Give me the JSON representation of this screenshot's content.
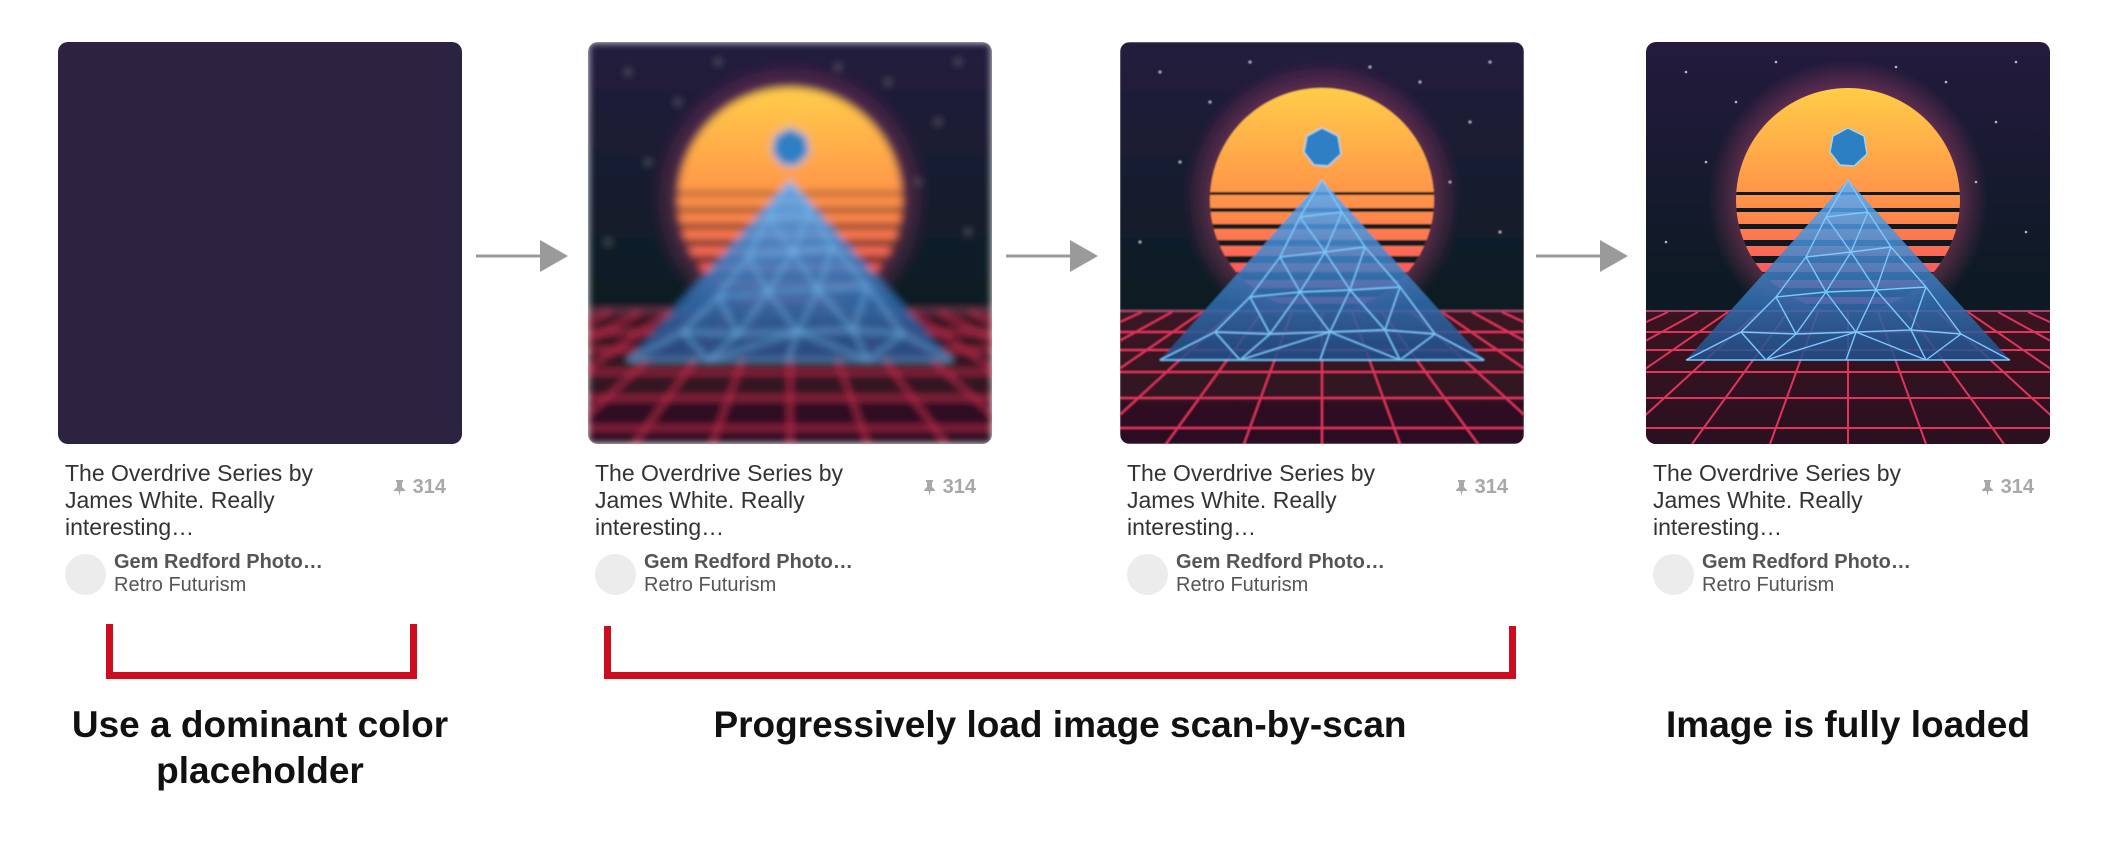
{
  "colors": {
    "placeholder": "#2b2340",
    "bracket": "#cb0d1e",
    "arrow": "#9a9a9a",
    "sky_top": "#241a3e",
    "sky_bottom": "#0d1a24",
    "sun_top": "#ffd048",
    "sun_bottom": "#f4306a",
    "mountain": "#2d6fb0",
    "mountain_lines": "#7cc8ff",
    "grid_lines": "#e0345c",
    "floor": "#2a1020"
  },
  "cards": [
    {
      "state": "placeholder",
      "image_alt": "Dominant color placeholder",
      "description": "The Overdrive Series by James White. Really interesting…",
      "saves": "314",
      "pinner": "Gem Redford Photo…",
      "board": "Retro Futurism"
    },
    {
      "state": "blurred",
      "image_alt": "Progressively loading image (low detail)",
      "description": "The Overdrive Series by James White. Really interesting…",
      "saves": "314",
      "pinner": "Gem Redford Photo…",
      "board": "Retro Futurism"
    },
    {
      "state": "partial",
      "image_alt": "Progressively loading image (more detail)",
      "description": "The Overdrive Series by James White. Really interesting…",
      "saves": "314",
      "pinner": "Gem Redford Photo…",
      "board": "Retro Futurism"
    },
    {
      "state": "full",
      "image_alt": "Fully loaded image",
      "description": "The Overdrive Series by James White. Really interesting…",
      "saves": "314",
      "pinner": "Gem Redford Photo…",
      "board": "Retro Futurism"
    }
  ],
  "captions": {
    "placeholder": "Use a dominant color placeholder",
    "progressive": "Progressively load image scan-by-scan",
    "loaded": "Image is fully loaded"
  }
}
